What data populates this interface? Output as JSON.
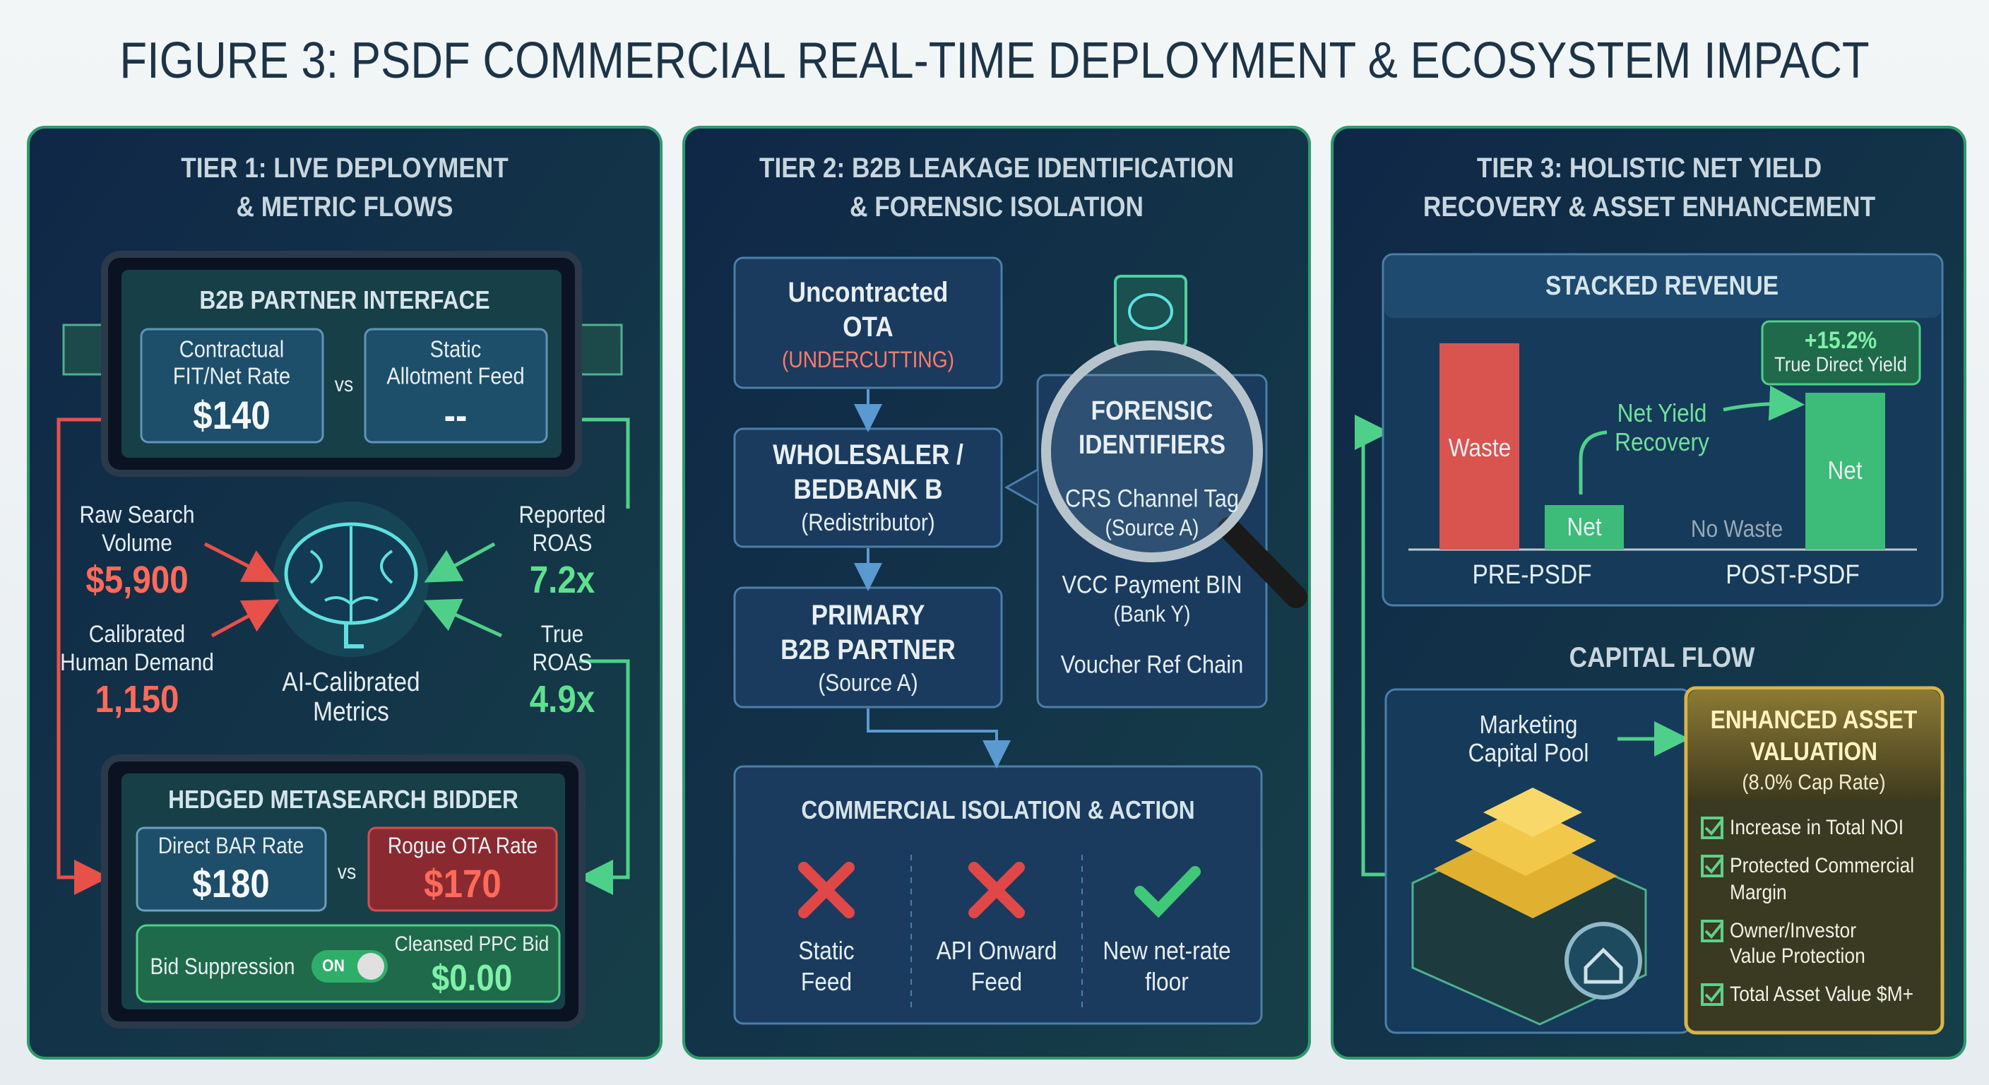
{
  "title": "FIGURE 3: PSDF COMMERCIAL REAL-TIME DEPLOYMENT & ECOSYSTEM IMPACT",
  "tier1": {
    "heading": [
      "TIER 1: LIVE DEPLOYMENT",
      "& METRIC FLOWS"
    ],
    "partner_interface": {
      "title": "B2B PARTNER INTERFACE",
      "contract": {
        "label": [
          "Contractual",
          "FIT/Net Rate"
        ],
        "value": "$140"
      },
      "vs": "vs",
      "allotment": {
        "label": [
          "Static",
          "Allotment Feed"
        ],
        "value": "--"
      }
    },
    "raw_search": {
      "label": [
        "Raw Search",
        "Volume"
      ],
      "value": "$5,900"
    },
    "calibrated_demand": {
      "label": [
        "Calibrated",
        "Human Demand"
      ],
      "value": "1,150"
    },
    "reported_roas": {
      "label": [
        "Reported",
        "ROAS"
      ],
      "value": "7.2x"
    },
    "true_roas": {
      "label": [
        "True",
        "ROAS"
      ],
      "value": "4.9x"
    },
    "engine": [
      "AI-Calibrated",
      "Metrics"
    ],
    "bidder": {
      "title": "HEDGED METASEARCH BIDDER",
      "direct": {
        "label": "Direct BAR Rate",
        "value": "$180"
      },
      "vs": "vs",
      "rogue": {
        "label": "Rogue OTA Rate",
        "value": "$170"
      },
      "suppression": "Bid Suppression",
      "toggle": "ON",
      "cleansed": {
        "label": "Cleansed PPC Bid",
        "value": "$0.00"
      }
    }
  },
  "tier2": {
    "heading": [
      "TIER 2: B2B LEAKAGE IDENTIFICATION",
      "& FORENSIC ISOLATION"
    ],
    "chain": [
      {
        "lines": [
          "Uncontracted",
          "OTA"
        ],
        "note": "(UNDERCUTTING)"
      },
      {
        "lines": [
          "WHOLESALER /",
          "BEDBANK B"
        ],
        "note": "(Redistributor)"
      },
      {
        "lines": [
          "PRIMARY",
          "B2B PARTNER"
        ],
        "note": "(Source A)"
      }
    ],
    "forensic": {
      "title": [
        "FORENSIC",
        "IDENTIFIERS"
      ],
      "items": [
        {
          "name": "CRS Channel Tag",
          "note": "(Source A)"
        },
        {
          "name": "VCC Payment BIN",
          "note": "(Bank Y)"
        },
        {
          "name": "Voucher Ref Chain"
        }
      ]
    },
    "action": {
      "title": "COMMERCIAL ISOLATION & ACTION",
      "items": [
        [
          "Static",
          "Feed"
        ],
        [
          "API Onward",
          "Feed"
        ],
        [
          "New net-rate",
          "floor"
        ]
      ]
    }
  },
  "tier3": {
    "heading": [
      "TIER 3: HOLISTIC NET YIELD",
      "RECOVERY & ASSET ENHANCEMENT"
    ],
    "stacked": {
      "title": "STACKED REVENUE",
      "waste": "Waste",
      "pre_net": "Net",
      "post_net": "Net",
      "no_waste": "No Waste",
      "recovery": [
        "Net Yield",
        "Recovery"
      ],
      "uplift": "+15.2%",
      "uplift_label": "True Direct Yield",
      "pre": "PRE-PSDF",
      "post": "POST-PSDF"
    },
    "capital": {
      "title": "CAPITAL FLOW",
      "pool": [
        "Marketing",
        "Capital Pool"
      ],
      "valuation": {
        "title": [
          "ENHANCED ASSET",
          "VALUATION"
        ],
        "note": "(8.0% Cap Rate)",
        "checks": [
          [
            "Increase in Total NOI"
          ],
          [
            "Protected Commercial",
            "Margin"
          ],
          [
            "Owner/Investor",
            "Value Protection"
          ],
          [
            "Total Asset Value $M+"
          ]
        ]
      }
    }
  }
}
